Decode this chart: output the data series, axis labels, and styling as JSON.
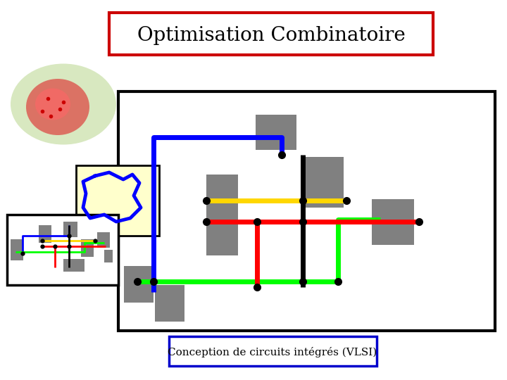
{
  "title": "Optimisation Combinatoire",
  "subtitle": "Conception de circuits intégrés (VLSI)",
  "bg_color": "#ffffff",
  "title_border_color": "#cc0000",
  "subtitle_border_color": "#0000cc",
  "lw": 5.0
}
